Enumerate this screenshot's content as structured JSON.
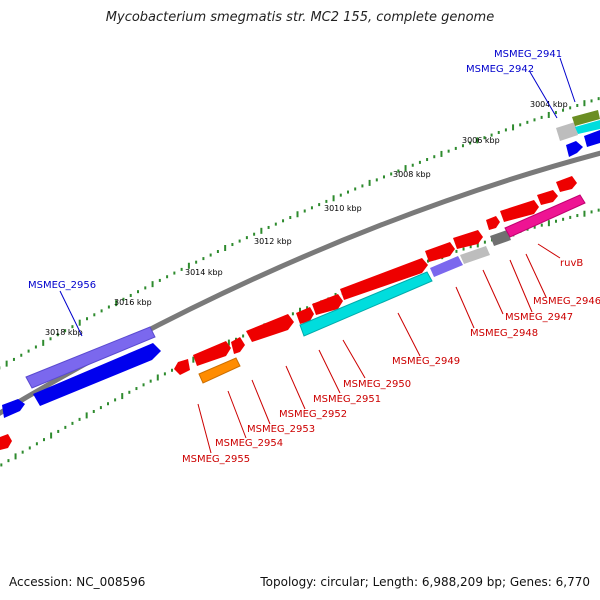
{
  "title": "Mycobacterium smegmatis str. MC2 155, complete genome",
  "footer": {
    "accession": "Accession: NC_008596",
    "topology": "Topology: circular; Length: 6,988,209 bp; Genes: 6,770"
  },
  "colors": {
    "backbone": "#808080",
    "tick": "#2e8b2e",
    "label_blue": "#0000cc",
    "label_red": "#cc0000",
    "red_gene": "#ee0000",
    "blue_gene": "#0000ee",
    "slate_gene": "#7b68ee",
    "cyan_gene": "#00dddd",
    "magenta_gene": "#ee1493",
    "orange_gene": "#ff8c00",
    "grey_gene": "#bdbdbd",
    "olive_gene": "#6b8e23"
  },
  "scale_labels": [
    "3004 kbp",
    "3006 kbp",
    "3008 kbp",
    "3010 kbp",
    "3012 kbp",
    "3014 kbp",
    "3016 kbp",
    "3018 kbp"
  ],
  "gene_labels_top": [
    "MSMEG_2941",
    "MSMEG_2942",
    "MSMEG_2956"
  ],
  "gene_labels_bottom": [
    "ruvB",
    "MSMEG_2946",
    "MSMEG_2947",
    "MSMEG_2948",
    "MSMEG_2949",
    "MSMEG_2950",
    "MSMEG_2951",
    "MSMEG_2952",
    "MSMEG_2953",
    "MSMEG_2954",
    "MSMEG_2955"
  ]
}
